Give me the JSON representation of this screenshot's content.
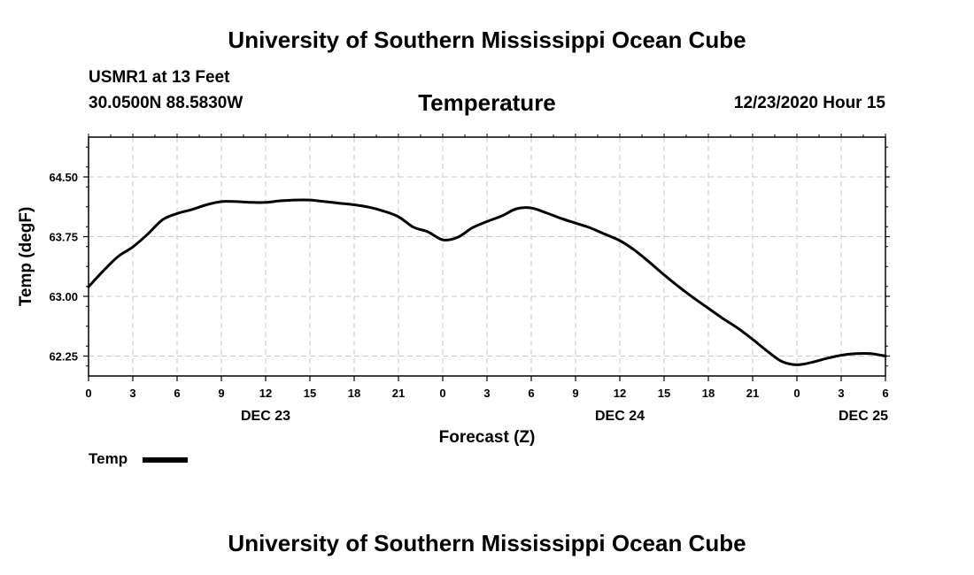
{
  "header": {
    "title": "University of Southern Mississippi Ocean Cube",
    "station": "USMR1 at 13 Feet",
    "coords": "30.0500N 88.5830W",
    "chart_title": "Temperature",
    "datetime": "12/23/2020 Hour 15"
  },
  "footer": {
    "title": "University of Southern Mississippi Ocean Cube"
  },
  "legend": {
    "label": "Temp"
  },
  "colors": {
    "line": "#000000",
    "grid": "#c8c8c8"
  },
  "chart_data": {
    "type": "line",
    "title": "Temperature",
    "xlabel": "Forecast (Z)",
    "ylabel": "Temp (degF)",
    "ylim": [
      62.0,
      65.0
    ],
    "xlim": [
      0,
      54
    ],
    "yticks": [
      62.25,
      63.0,
      63.75,
      64.5
    ],
    "ytick_labels": [
      "62.25",
      "63.00",
      "63.75",
      "64.50"
    ],
    "xticks": [
      0,
      3,
      6,
      9,
      12,
      15,
      18,
      21,
      24,
      27,
      30,
      33,
      36,
      39,
      42,
      45,
      48,
      51,
      54
    ],
    "xtick_labels": [
      "0",
      "3",
      "6",
      "9",
      "12",
      "15",
      "18",
      "21",
      "0",
      "3",
      "6",
      "9",
      "12",
      "15",
      "18",
      "21",
      "0",
      "3",
      "6"
    ],
    "day_labels": [
      {
        "x": 12,
        "label": "DEC 23"
      },
      {
        "x": 36,
        "label": "DEC 24"
      },
      {
        "x": 52.5,
        "label": "DEC 25"
      }
    ],
    "grid": true,
    "legend": "bottom-left",
    "series": [
      {
        "name": "Temp",
        "x": [
          0,
          1,
          2,
          3,
          4,
          5,
          6,
          7,
          8,
          9,
          10,
          11,
          12,
          13,
          14,
          15,
          16,
          17,
          18,
          19,
          20,
          21,
          22,
          23,
          24,
          25,
          26,
          27,
          28,
          29,
          30,
          31,
          32,
          33,
          34,
          35,
          36,
          37,
          38,
          39,
          40,
          41,
          42,
          43,
          44,
          45,
          46,
          47,
          48,
          49,
          50,
          51,
          52,
          53,
          54
        ],
        "values": [
          63.12,
          63.32,
          63.5,
          63.62,
          63.78,
          63.96,
          64.04,
          64.09,
          64.15,
          64.19,
          64.19,
          64.18,
          64.18,
          64.2,
          64.21,
          64.21,
          64.19,
          64.17,
          64.15,
          64.12,
          64.07,
          64.0,
          63.87,
          63.81,
          63.71,
          63.74,
          63.86,
          63.94,
          64.01,
          64.1,
          64.11,
          64.05,
          63.98,
          63.92,
          63.86,
          63.78,
          63.7,
          63.58,
          63.43,
          63.27,
          63.12,
          62.98,
          62.85,
          62.72,
          62.6,
          62.46,
          62.31,
          62.18,
          62.14,
          62.17,
          62.22,
          62.26,
          62.28,
          62.28,
          62.25
        ]
      }
    ]
  }
}
